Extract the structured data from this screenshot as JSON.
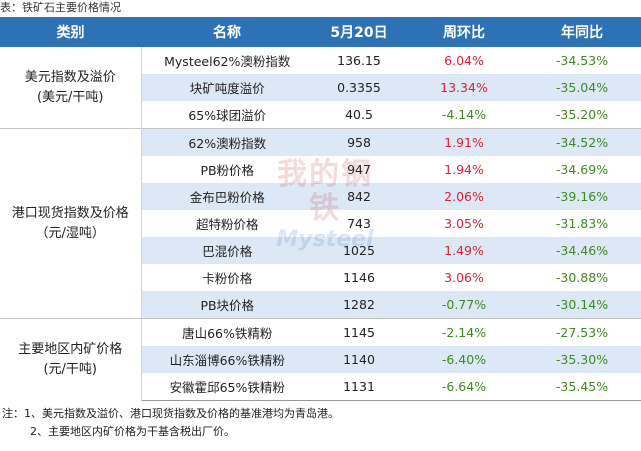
{
  "caption": "表：铁矿石主要价格情况",
  "header": [
    "类别",
    "名称",
    "5月20日",
    "周环比",
    "年同比"
  ],
  "groups": [
    {
      "category_line1": "美元指数及溢价",
      "category_line2": "(美元/干吨)",
      "rows": [
        {
          "name": "Mysteel62%澳粉指数",
          "price": "136.15",
          "wow": "6.04%",
          "yoy": "-34.53%"
        },
        {
          "name": "块矿吨度溢价",
          "price": "0.3355",
          "wow": "13.34%",
          "yoy": "-35.04%"
        },
        {
          "name": "65%球团溢价",
          "price": "40.5",
          "wow": "-4.14%",
          "yoy": "-35.20%"
        }
      ]
    },
    {
      "category_line1": "港口现货指数及价格",
      "category_line2": "（元/湿吨）",
      "rows": [
        {
          "name": "62%澳粉指数",
          "price": "958",
          "wow": "1.91%",
          "yoy": "-34.52%"
        },
        {
          "name": "PB粉价格",
          "price": "947",
          "wow": "1.94%",
          "yoy": "-34.69%"
        },
        {
          "name": "金布巴粉价格",
          "price": "842",
          "wow": "2.06%",
          "yoy": "-39.16%"
        },
        {
          "name": "超特粉价格",
          "price": "743",
          "wow": "3.05%",
          "yoy": "-31.83%"
        },
        {
          "name": "巴混价格",
          "price": "1025",
          "wow": "1.49%",
          "yoy": "-34.46%"
        },
        {
          "name": "卡粉价格",
          "price": "1146",
          "wow": "3.06%",
          "yoy": "-30.88%"
        },
        {
          "name": "PB块价格",
          "price": "1282",
          "wow": "-0.77%",
          "yoy": "-30.14%"
        }
      ]
    },
    {
      "category_line1": "主要地区内矿价格",
      "category_line2": "(元/干吨)",
      "rows": [
        {
          "name": "唐山66%铁精粉",
          "price": "1145",
          "wow": "-2.14%",
          "yoy": "-27.53%"
        },
        {
          "name": "山东淄博66%铁精粉",
          "price": "1140",
          "wow": "-6.40%",
          "yoy": "-35.30%"
        },
        {
          "name": "安徽霍邱65%铁精粉",
          "price": "1131",
          "wow": "-6.64%",
          "yoy": "-35.45%"
        }
      ]
    }
  ],
  "watermark": {
    "cn": "我的钢铁",
    "en": "Mysteel"
  },
  "notes": {
    "note1": "注：1、美元指数及溢价、港口现货指数及价格的基准港均为青岛港。",
    "note2": "2、主要地区内矿价格为干基含税出厂价。"
  },
  "colors": {
    "header_bg": "#2e72b6",
    "stripe": "#dce8f5",
    "positive": "#e0222f",
    "negative": "#3d8b1d"
  }
}
